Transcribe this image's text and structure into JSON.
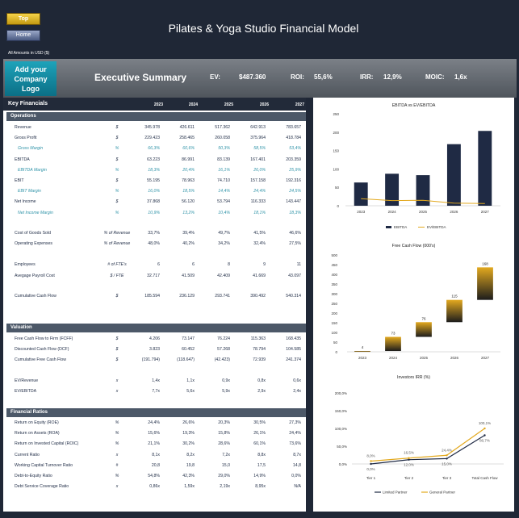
{
  "nav": {
    "top_label": "Top",
    "home_label": "Home"
  },
  "app_title": "Pilates & Yoga Studio Financial Model",
  "amounts_note": "All Amounts in  USD ($)",
  "logo_text": "Add your Company Logo",
  "header": {
    "section_title": "Executive Summary",
    "ev_label": "EV:",
    "ev_value": "$487.360",
    "roi_label": "ROI:",
    "roi_value": "55,6%",
    "irr_label": "IRR:",
    "irr_value": "12,9%",
    "moic_label": "MOIC:",
    "moic_value": "1,6x"
  },
  "key_financials": {
    "title": "Key Financials",
    "years": [
      "2023",
      "2024",
      "2025",
      "2026",
      "2027"
    ],
    "sections": {
      "operations": "Operations",
      "valuation": "Valuation",
      "ratios": "Financial Ratios"
    },
    "operations_rows": [
      {
        "label": "Revenue",
        "unit": "$",
        "values": [
          "345.978",
          "426.611",
          "517.362",
          "642.913",
          "783.657"
        ],
        "sub": false
      },
      {
        "label": "Gross Profit",
        "unit": "$",
        "values": [
          "229.423",
          "258.465",
          "260.058",
          "375.964",
          "418.784"
        ],
        "sub": false
      },
      {
        "label": "Gross Margin",
        "unit": "%",
        "values": [
          "66,3%",
          "60,6%",
          "50,3%",
          "58,5%",
          "53,4%"
        ],
        "sub": true
      },
      {
        "label": "EBITDA",
        "unit": "$",
        "values": [
          "63.223",
          "86.991",
          "83.139",
          "167.401",
          "203.359"
        ],
        "sub": false
      },
      {
        "label": "EBITDA Margin",
        "unit": "%",
        "values": [
          "18,3%",
          "20,4%",
          "16,1%",
          "26,0%",
          "25,9%"
        ],
        "sub": true
      },
      {
        "label": "EBIT",
        "unit": "$",
        "values": [
          "55.195",
          "78.963",
          "74.710",
          "157.158",
          "192.316"
        ],
        "sub": false
      },
      {
        "label": "EBIT Margin",
        "unit": "%",
        "values": [
          "16,0%",
          "18,5%",
          "14,4%",
          "24,4%",
          "24,5%"
        ],
        "sub": true
      },
      {
        "label": "Net Income",
        "unit": "$",
        "values": [
          "37.868",
          "56.120",
          "53.794",
          "116.333",
          "143.447"
        ],
        "sub": false
      },
      {
        "label": "Net Income Margin",
        "unit": "%",
        "values": [
          "10,9%",
          "13,2%",
          "10,4%",
          "18,1%",
          "18,3%"
        ],
        "sub": true
      }
    ],
    "cost_rows": [
      {
        "label": "Cost of Goods Sold",
        "unit": "% of Revenue",
        "values": [
          "33,7%",
          "39,4%",
          "49,7%",
          "41,5%",
          "46,6%"
        ]
      },
      {
        "label": "Operating Expenses",
        "unit": "% of Revenue",
        "values": [
          "48,0%",
          "40,2%",
          "34,2%",
          "32,4%",
          "27,5%"
        ]
      }
    ],
    "people_rows": [
      {
        "label": "Employees",
        "unit": "# of FTE's",
        "values": [
          "6",
          "6",
          "8",
          "9",
          "11"
        ]
      },
      {
        "label": "Avegage Payroll Cost",
        "unit": "$ / FTE",
        "values": [
          "32.717",
          "41.509",
          "42.409",
          "41.669",
          "43.097"
        ]
      }
    ],
    "cash_rows": [
      {
        "label": "Cumulative Cash Flow",
        "unit": "$",
        "values": [
          "185.594",
          "236.129",
          "293.741",
          "390.492",
          "540.314"
        ]
      }
    ],
    "valuation_rows": [
      {
        "label": "Free Cash Flow to Firm (FCFF)",
        "unit": "$",
        "values": [
          "4.206",
          "73.147",
          "76.224",
          "115.363",
          "168.435"
        ]
      },
      {
        "label": "Discounted Cash Flow (DCF)",
        "unit": "$",
        "values": [
          "3.823",
          "60.452",
          "57.268",
          "78.794",
          "104.585"
        ]
      },
      {
        "label": "Cumulative Free Cash Flow",
        "unit": "$",
        "values": [
          "(191.794)",
          "(118.647)",
          "(42.423)",
          "72.939",
          "241.374"
        ]
      }
    ],
    "multiple_rows": [
      {
        "label": "EV/Revenue",
        "unit": "x",
        "values": [
          "1,4x",
          "1,1x",
          "0,9x",
          "0,8x",
          "0,6x"
        ]
      },
      {
        "label": "EV/EBITDA",
        "unit": "x",
        "values": [
          "7,7x",
          "5,6x",
          "5,9x",
          "2,9x",
          "2,4x"
        ]
      }
    ],
    "ratio_rows": [
      {
        "label": "Return on Equity (ROE)",
        "unit": "%",
        "values": [
          "24,4%",
          "26,6%",
          "20,3%",
          "30,5%",
          "27,3%"
        ]
      },
      {
        "label": "Return on Assets (ROA)",
        "unit": "%",
        "values": [
          "15,6%",
          "19,3%",
          "15,8%",
          "26,1%",
          "24,4%"
        ]
      },
      {
        "label": "Return on Invested Capital (ROIC)",
        "unit": "%",
        "values": [
          "21,1%",
          "30,2%",
          "28,6%",
          "60,1%",
          "73,6%"
        ]
      },
      {
        "label": "Current Ratio",
        "unit": "x",
        "values": [
          "8,1x",
          "8,2x",
          "7,2x",
          "8,8x",
          "8,7x"
        ]
      },
      {
        "label": "Working Capital Turnover Ratio",
        "unit": "#",
        "values": [
          "20,8",
          "19,8",
          "15,0",
          "17,5",
          "14,8"
        ]
      },
      {
        "label": "Debt-to-Equity Ratio",
        "unit": "%",
        "values": [
          "54,8%",
          "42,3%",
          "29,0%",
          "14,9%",
          "0,0%"
        ]
      },
      {
        "label": "Debt Service Coverage Ratio",
        "unit": "x",
        "values": [
          "0,86x",
          "1,59x",
          "2,19x",
          "8,95x",
          "N/A"
        ]
      }
    ]
  },
  "chart_data": [
    {
      "type": "bar",
      "title": "EBITDA  vs EV/EBITDA",
      "categories": [
        "2023",
        "2024",
        "2025",
        "2026",
        "2027"
      ],
      "series": [
        {
          "name": "EBITDA",
          "values": [
            63.2,
            87.0,
            83.1,
            167.4,
            203.4
          ]
        },
        {
          "name": "EV/EBITDA",
          "values": [
            7.7,
            5.6,
            5.9,
            2.9,
            2.4
          ]
        }
      ],
      "ylim": [
        0,
        250
      ],
      "yticks": [
        "0",
        "50",
        "100",
        "150",
        "200",
        "250"
      ],
      "legend": "bottom",
      "colors": [
        "#1f2a44",
        "#e3a91f"
      ]
    },
    {
      "type": "bar",
      "title": "Free Cash Flow (000's)",
      "categories": [
        "2023",
        "2024",
        "2025",
        "2026",
        "2027"
      ],
      "values": [
        4,
        73,
        76,
        115,
        168
      ],
      "ylim": [
        0,
        500
      ],
      "yticks": [
        "0",
        "50",
        "100",
        "150",
        "200",
        "250",
        "300",
        "350",
        "400",
        "450",
        "500"
      ],
      "style": "waterfall",
      "colors": [
        "#e3a91f",
        "#1c1c1c"
      ]
    },
    {
      "type": "line",
      "title": "Investors IRR (%)",
      "categories": [
        "Tier 1",
        "Tier 2",
        "Tier 3",
        "Total Cash Flow"
      ],
      "series": [
        {
          "name": "Limited Partner",
          "values": [
            0.0,
            12.0,
            15.0,
            80.7
          ],
          "labels": [
            "0,0%",
            "12,0%",
            "15,0%",
            "80,7%"
          ]
        },
        {
          "name": "General Partner",
          "values": [
            8.0,
            16.5,
            24.4,
            100.1
          ],
          "labels": [
            "8,0%",
            "16,5%",
            "24,4%",
            "100,1%"
          ]
        }
      ],
      "ylim": [
        0,
        200
      ],
      "yticks": [
        "0,0%",
        "50,0%",
        "100,0%",
        "150,0%",
        "200,0%"
      ],
      "legend": "bottom",
      "colors": [
        "#1f2a44",
        "#e3a91f"
      ]
    }
  ]
}
